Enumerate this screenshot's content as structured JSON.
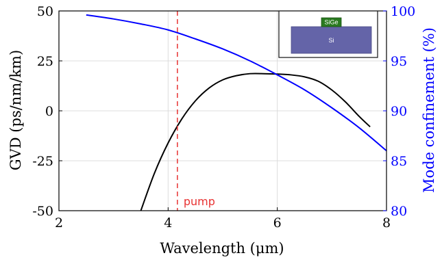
{
  "chart_data": {
    "type": "line",
    "xlabel": "Wavelength (μm)",
    "ylabel_left": "GVD (ps/nm/km)",
    "ylabel_right": "Mode confinement (%)",
    "xlim": [
      2,
      8
    ],
    "ylim_left": [
      -50,
      50
    ],
    "ylim_right": [
      80,
      100
    ],
    "x_ticks": [
      "2",
      "4",
      "6",
      "8"
    ],
    "y_ticks_left": [
      "-50",
      "-25",
      "0",
      "25",
      "50"
    ],
    "y_ticks_right": [
      "80",
      "85",
      "90",
      "95",
      "100"
    ],
    "grid": true,
    "series": [
      {
        "axis": "left",
        "color": "#000000",
        "x": [
          3.5,
          3.75,
          4.0,
          4.25,
          4.5,
          4.75,
          5.0,
          5.25,
          5.5,
          5.75,
          6.0,
          6.25,
          6.5,
          6.75,
          7.0,
          7.25,
          7.5,
          7.7
        ],
        "y": [
          -50.0,
          -31.2,
          -16.1,
          -4.1,
          5.0,
          11.4,
          15.5,
          17.6,
          18.6,
          18.6,
          18.4,
          18.0,
          17.0,
          14.8,
          10.4,
          4.4,
          -2.8,
          -8.0
        ]
      },
      {
        "axis": "right",
        "color": "#0000ff",
        "x": [
          2.5,
          3.0,
          3.5,
          4.0,
          4.5,
          5.0,
          5.5,
          6.0,
          6.5,
          7.0,
          7.5,
          8.0
        ],
        "y": [
          99.6,
          99.2,
          98.7,
          98.1,
          97.2,
          96.2,
          95.0,
          93.6,
          92.1,
          90.3,
          88.3,
          86.0
        ]
      }
    ],
    "annotations": [
      {
        "text": "pump",
        "x": 4.17,
        "color": "#e83232",
        "style": "dashed-vertical-line"
      }
    ],
    "inset": {
      "top_label": "SiGe",
      "bottom_label": "Si"
    }
  }
}
